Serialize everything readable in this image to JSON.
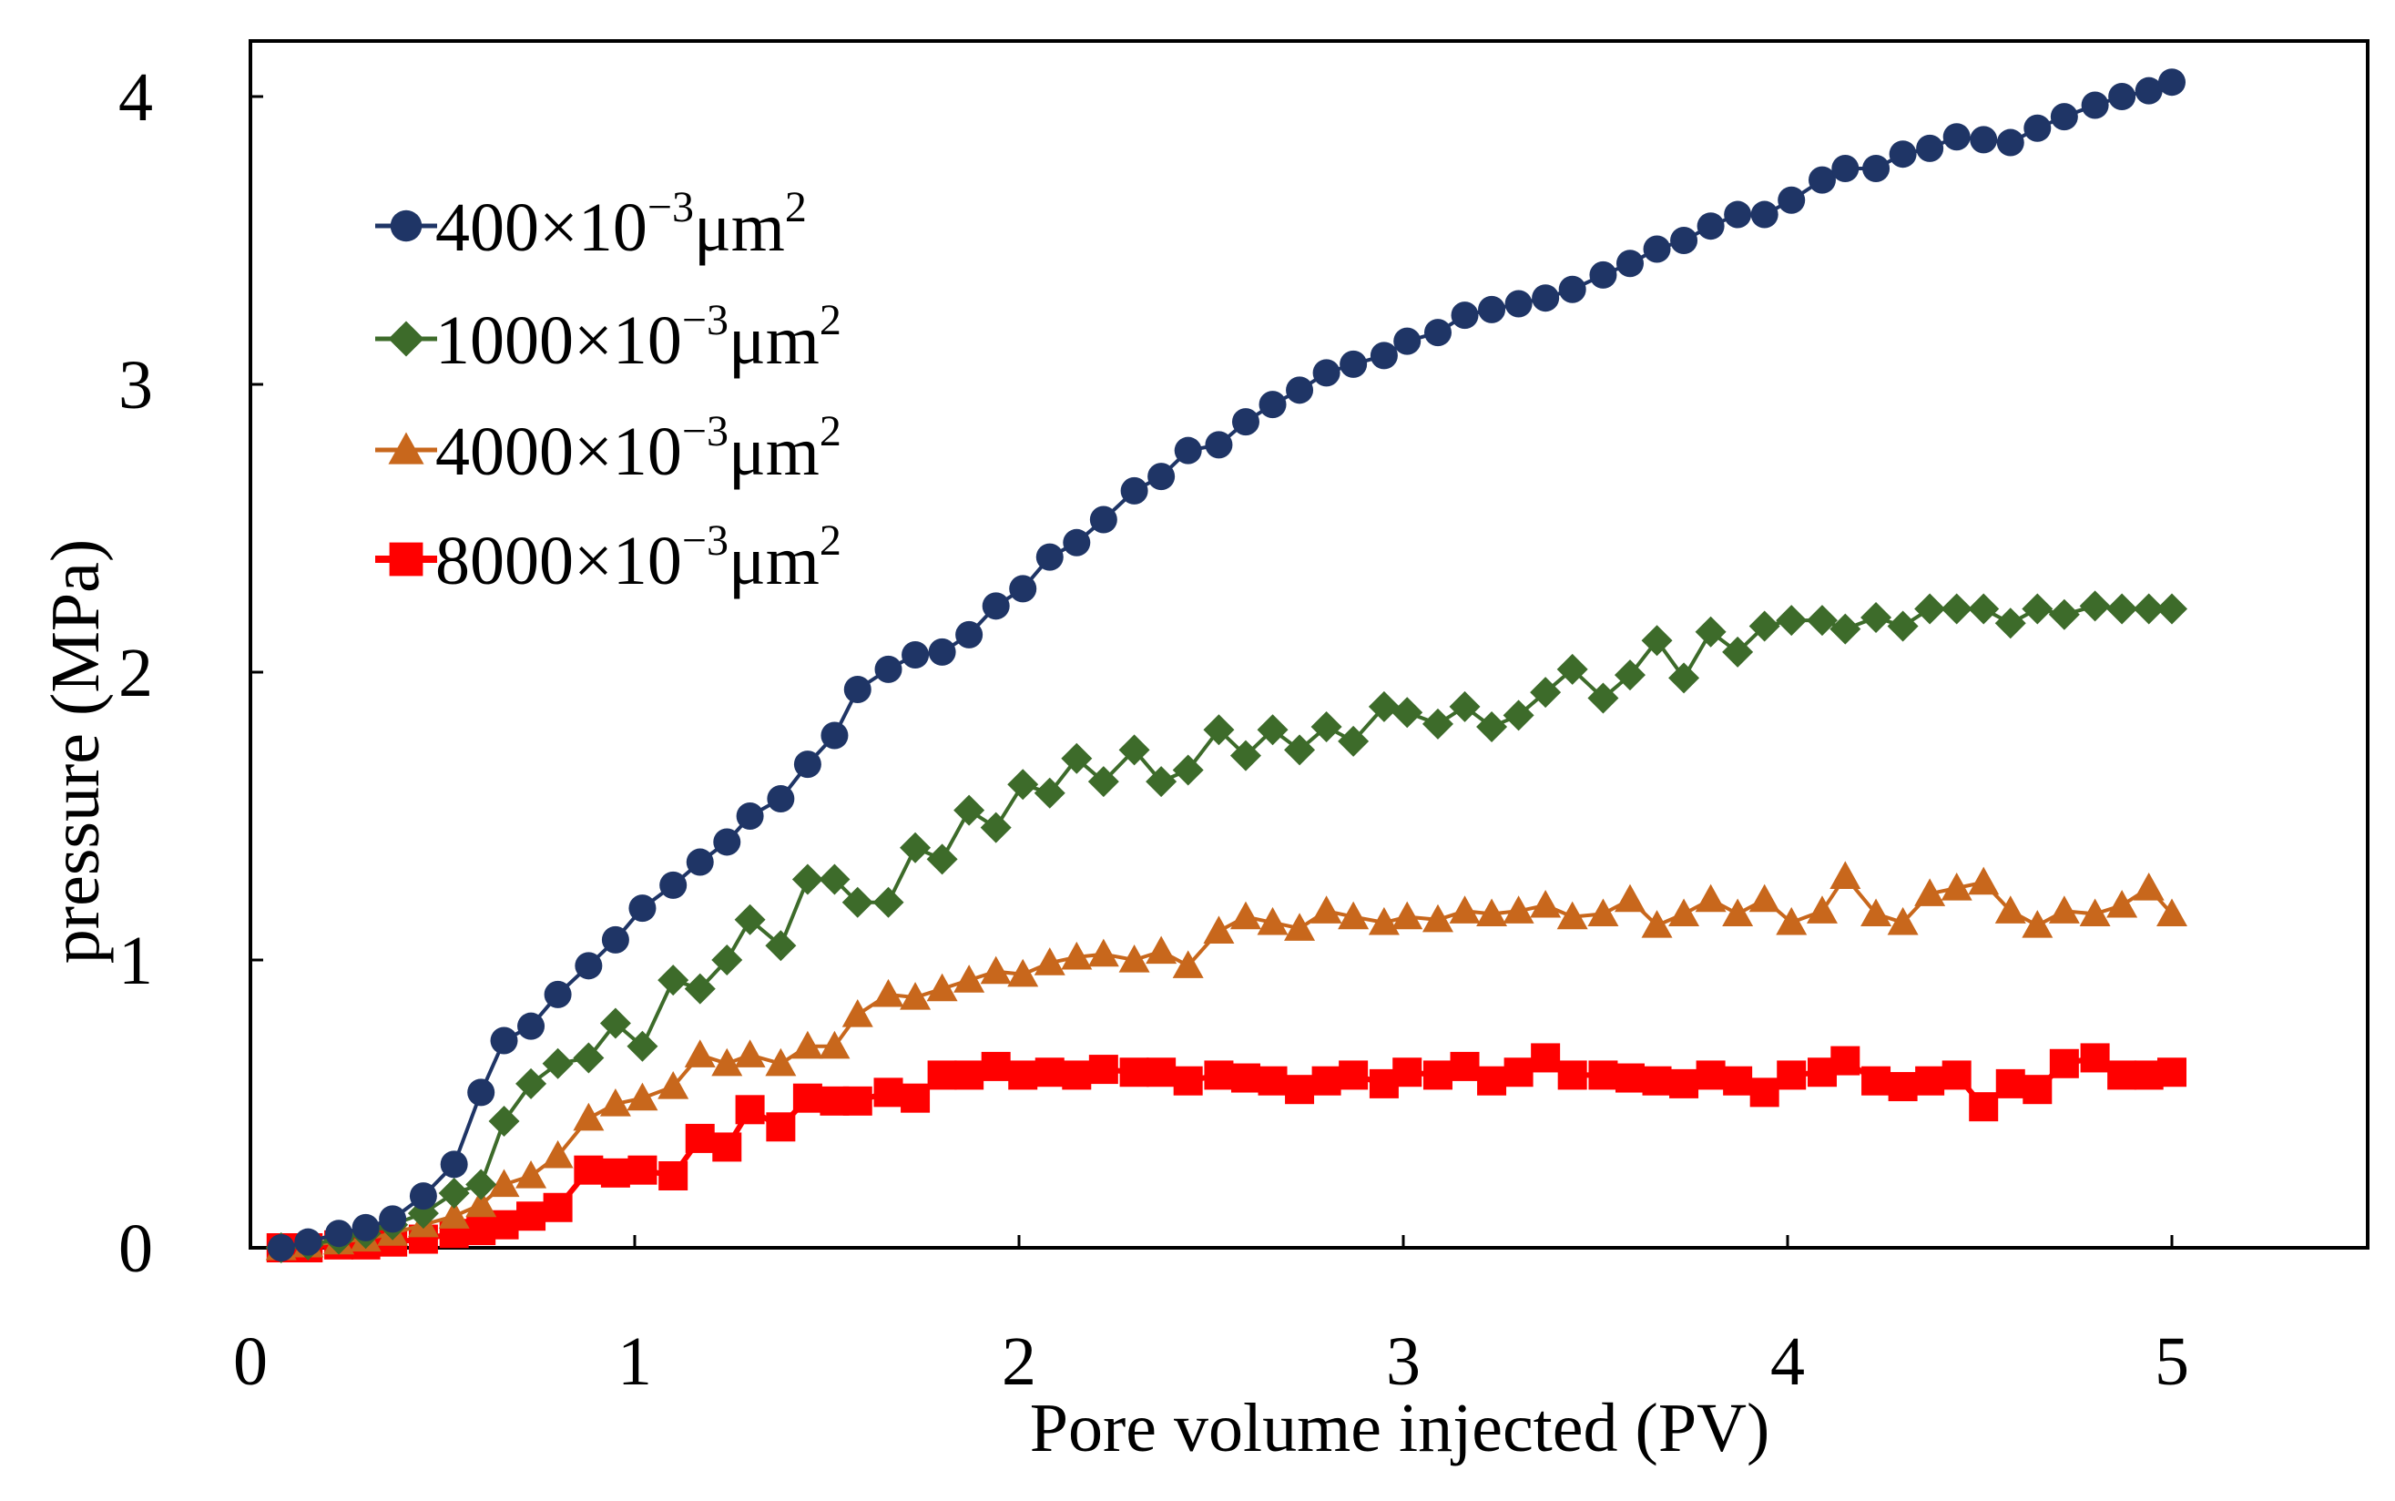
{
  "chart_data": {
    "type": "line",
    "title": "",
    "xlabel": "Pore volume injected (PV)",
    "ylabel": "pressure (MPa)",
    "xlim": [
      0,
      5.5
    ],
    "ylim": [
      0,
      4.2
    ],
    "xticks": [
      "0",
      "1",
      "2",
      "3",
      "4",
      "5"
    ],
    "yticks": [
      "0",
      "1",
      "2",
      "3",
      "4"
    ],
    "legend_position": "upper-left",
    "series": [
      {
        "name": "400×10⁻³μm²",
        "legend": {
          "prefix": "400",
          "times": "×",
          "base": "10",
          "exp": "−3",
          "unit": "μm",
          "unit_exp": "2"
        },
        "color": "#1f3566",
        "marker": "circle",
        "x": [
          0.08,
          0.15,
          0.23,
          0.3,
          0.37,
          0.45,
          0.53,
          0.6,
          0.66,
          0.73,
          0.8,
          0.88,
          0.95,
          1.02,
          1.1,
          1.17,
          1.24,
          1.3,
          1.38,
          1.45,
          1.52,
          1.58,
          1.66,
          1.73,
          1.8,
          1.87,
          1.94,
          2.01,
          2.08,
          2.15,
          2.22,
          2.3,
          2.37,
          2.44,
          2.52,
          2.59,
          2.66,
          2.73,
          2.8,
          2.87,
          2.95,
          3.01,
          3.09,
          3.16,
          3.23,
          3.3,
          3.37,
          3.44,
          3.52,
          3.59,
          3.66,
          3.73,
          3.8,
          3.87,
          3.94,
          4.01,
          4.09,
          4.15,
          4.23,
          4.3,
          4.37,
          4.44,
          4.51,
          4.58,
          4.65,
          4.72,
          4.8,
          4.87,
          4.94,
          5.0
        ],
        "y": [
          0.0,
          0.02,
          0.05,
          0.07,
          0.1,
          0.18,
          0.29,
          0.54,
          0.72,
          0.77,
          0.88,
          0.98,
          1.07,
          1.18,
          1.26,
          1.34,
          1.41,
          1.5,
          1.56,
          1.68,
          1.78,
          1.94,
          2.01,
          2.06,
          2.07,
          2.13,
          2.23,
          2.29,
          2.4,
          2.45,
          2.53,
          2.63,
          2.68,
          2.77,
          2.79,
          2.87,
          2.93,
          2.98,
          3.04,
          3.07,
          3.1,
          3.15,
          3.18,
          3.24,
          3.26,
          3.28,
          3.3,
          3.33,
          3.38,
          3.42,
          3.47,
          3.5,
          3.55,
          3.59,
          3.59,
          3.64,
          3.71,
          3.75,
          3.75,
          3.8,
          3.82,
          3.86,
          3.85,
          3.84,
          3.89,
          3.93,
          3.97,
          4.0,
          4.02,
          4.05
        ]
      },
      {
        "name": "1000×10⁻³μm²",
        "legend": {
          "prefix": "1000",
          "times": "×",
          "base": "10",
          "exp": "−3",
          "unit": "μm",
          "unit_exp": "2"
        },
        "color": "#3d6b2a",
        "marker": "diamond",
        "x": [
          0.08,
          0.15,
          0.23,
          0.3,
          0.37,
          0.45,
          0.53,
          0.6,
          0.66,
          0.73,
          0.8,
          0.88,
          0.95,
          1.02,
          1.1,
          1.17,
          1.24,
          1.3,
          1.38,
          1.45,
          1.52,
          1.58,
          1.66,
          1.73,
          1.8,
          1.87,
          1.94,
          2.01,
          2.08,
          2.15,
          2.22,
          2.3,
          2.37,
          2.44,
          2.52,
          2.59,
          2.66,
          2.73,
          2.8,
          2.87,
          2.95,
          3.01,
          3.09,
          3.16,
          3.23,
          3.3,
          3.37,
          3.44,
          3.52,
          3.59,
          3.66,
          3.73,
          3.8,
          3.87,
          3.94,
          4.01,
          4.09,
          4.15,
          4.23,
          4.3,
          4.37,
          4.44,
          4.51,
          4.58,
          4.65,
          4.72,
          4.8,
          4.87,
          4.94,
          5.0
        ],
        "y": [
          0.0,
          0.01,
          0.03,
          0.05,
          0.08,
          0.12,
          0.19,
          0.22,
          0.44,
          0.57,
          0.64,
          0.66,
          0.78,
          0.7,
          0.93,
          0.9,
          1.0,
          1.14,
          1.05,
          1.28,
          1.28,
          1.2,
          1.2,
          1.39,
          1.35,
          1.52,
          1.46,
          1.61,
          1.58,
          1.7,
          1.62,
          1.73,
          1.62,
          1.66,
          1.8,
          1.71,
          1.8,
          1.73,
          1.81,
          1.76,
          1.88,
          1.86,
          1.82,
          1.88,
          1.81,
          1.85,
          1.93,
          2.01,
          1.91,
          1.99,
          2.11,
          1.98,
          2.14,
          2.07,
          2.16,
          2.18,
          2.18,
          2.15,
          2.19,
          2.16,
          2.22,
          2.22,
          2.22,
          2.17,
          2.22,
          2.2,
          2.23,
          2.22,
          2.22,
          2.22
        ]
      },
      {
        "name": "4000×10⁻³μm²",
        "legend": {
          "prefix": "4000",
          "times": "×",
          "base": "10",
          "exp": "−3",
          "unit": "μm",
          "unit_exp": "2"
        },
        "color": "#c8671c",
        "marker": "triangle",
        "x": [
          0.08,
          0.15,
          0.23,
          0.3,
          0.37,
          0.45,
          0.53,
          0.6,
          0.66,
          0.73,
          0.8,
          0.88,
          0.95,
          1.02,
          1.1,
          1.17,
          1.24,
          1.3,
          1.38,
          1.45,
          1.52,
          1.58,
          1.66,
          1.73,
          1.8,
          1.87,
          1.94,
          2.01,
          2.08,
          2.15,
          2.22,
          2.3,
          2.37,
          2.44,
          2.52,
          2.59,
          2.66,
          2.73,
          2.8,
          2.87,
          2.95,
          3.01,
          3.09,
          3.16,
          3.23,
          3.3,
          3.37,
          3.44,
          3.52,
          3.59,
          3.66,
          3.73,
          3.8,
          3.87,
          3.94,
          4.01,
          4.09,
          4.15,
          4.23,
          4.3,
          4.37,
          4.44,
          4.51,
          4.58,
          4.65,
          4.72,
          4.8,
          4.87,
          4.94,
          5.0
        ],
        "y": [
          0.0,
          0.01,
          0.02,
          0.03,
          0.05,
          0.08,
          0.11,
          0.15,
          0.22,
          0.25,
          0.32,
          0.45,
          0.5,
          0.52,
          0.56,
          0.67,
          0.64,
          0.67,
          0.64,
          0.7,
          0.7,
          0.81,
          0.88,
          0.87,
          0.9,
          0.93,
          0.96,
          0.95,
          0.99,
          1.01,
          1.02,
          1.0,
          1.03,
          0.98,
          1.1,
          1.15,
          1.13,
          1.11,
          1.17,
          1.15,
          1.13,
          1.15,
          1.14,
          1.17,
          1.16,
          1.17,
          1.19,
          1.15,
          1.16,
          1.21,
          1.12,
          1.16,
          1.21,
          1.16,
          1.21,
          1.13,
          1.17,
          1.29,
          1.16,
          1.13,
          1.23,
          1.25,
          1.27,
          1.17,
          1.12,
          1.17,
          1.16,
          1.19,
          1.25,
          1.16
        ]
      },
      {
        "name": "8000×10⁻³μm²",
        "legend": {
          "prefix": "8000",
          "times": "×",
          "base": "10",
          "exp": "−3",
          "unit": "μm",
          "unit_exp": "2"
        },
        "color": "#ff0000",
        "marker": "square",
        "x": [
          0.08,
          0.15,
          0.23,
          0.3,
          0.37,
          0.45,
          0.53,
          0.6,
          0.66,
          0.73,
          0.8,
          0.88,
          0.95,
          1.02,
          1.1,
          1.17,
          1.24,
          1.3,
          1.38,
          1.45,
          1.52,
          1.58,
          1.66,
          1.73,
          1.8,
          1.87,
          1.94,
          2.01,
          2.08,
          2.15,
          2.22,
          2.3,
          2.37,
          2.44,
          2.52,
          2.59,
          2.66,
          2.73,
          2.8,
          2.87,
          2.95,
          3.01,
          3.09,
          3.16,
          3.23,
          3.3,
          3.37,
          3.44,
          3.52,
          3.59,
          3.66,
          3.73,
          3.8,
          3.87,
          3.94,
          4.01,
          4.09,
          4.15,
          4.23,
          4.3,
          4.37,
          4.44,
          4.51,
          4.58,
          4.65,
          4.72,
          4.8,
          4.87,
          4.94,
          5.0
        ],
        "y": [
          0.0,
          0.0,
          0.01,
          0.01,
          0.02,
          0.03,
          0.05,
          0.06,
          0.08,
          0.11,
          0.14,
          0.27,
          0.26,
          0.27,
          0.25,
          0.38,
          0.35,
          0.48,
          0.42,
          0.52,
          0.51,
          0.51,
          0.54,
          0.52,
          0.6,
          0.6,
          0.63,
          0.6,
          0.61,
          0.6,
          0.62,
          0.61,
          0.61,
          0.58,
          0.6,
          0.59,
          0.58,
          0.55,
          0.58,
          0.6,
          0.57,
          0.61,
          0.6,
          0.63,
          0.58,
          0.61,
          0.66,
          0.6,
          0.6,
          0.59,
          0.58,
          0.57,
          0.6,
          0.58,
          0.54,
          0.6,
          0.61,
          0.65,
          0.58,
          0.56,
          0.58,
          0.6,
          0.49,
          0.57,
          0.55,
          0.64,
          0.66,
          0.6,
          0.6,
          0.61
        ]
      }
    ]
  }
}
